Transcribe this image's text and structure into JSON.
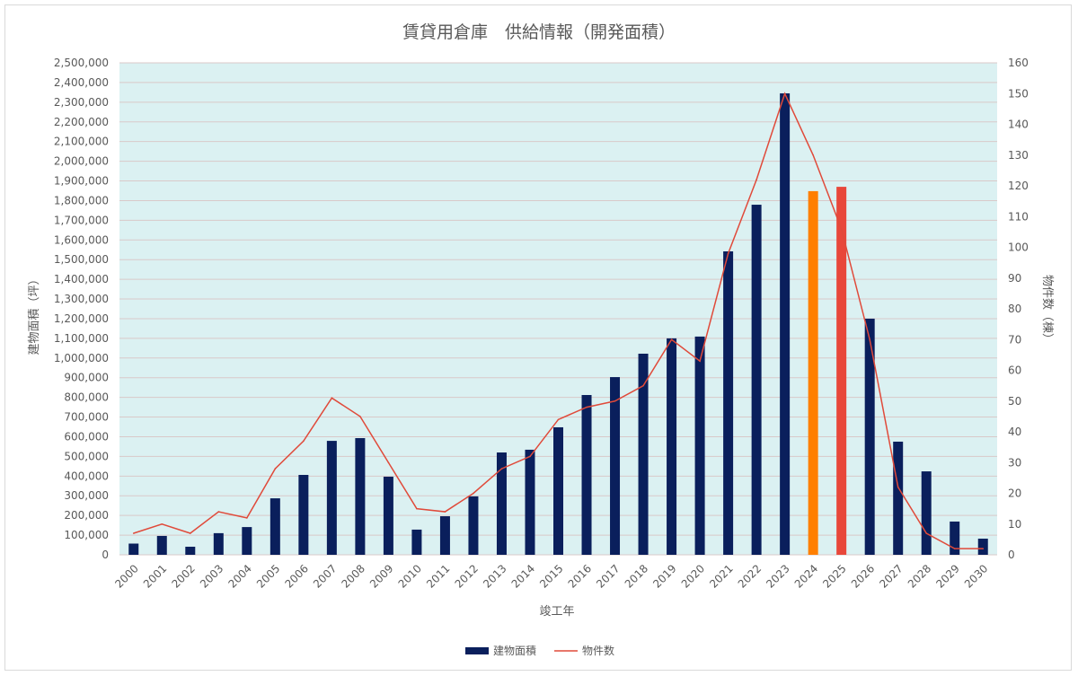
{
  "chart_data": {
    "type": "bar",
    "title": "賃貸用倉庫　供給情報（開発面積）",
    "xlabel": "竣工年",
    "ylabel": "建物面積（坪）",
    "y2label": "物件数（棟）",
    "ylim": [
      0,
      2500000
    ],
    "y2lim": [
      0,
      160
    ],
    "grid": true,
    "legend_position": "bottom",
    "categories": [
      "2000",
      "2001",
      "2002",
      "2003",
      "2004",
      "2005",
      "2006",
      "2007",
      "2008",
      "2009",
      "2010",
      "2011",
      "2012",
      "2013",
      "2014",
      "2015",
      "2016",
      "2017",
      "2018",
      "2019",
      "2020",
      "2021",
      "2022",
      "2023",
      "2024",
      "2025",
      "2026",
      "2027",
      "2028",
      "2029",
      "2030"
    ],
    "series": [
      {
        "name": "建物面積",
        "type": "bar",
        "axis": "left",
        "color": "#0a1f5c",
        "highlight_colors": {
          "2024": "#ff7f00",
          "2025": "#e8473a"
        },
        "values": [
          57000,
          96000,
          41000,
          110000,
          141000,
          287000,
          406000,
          579000,
          593000,
          397000,
          128000,
          196000,
          297000,
          520000,
          534000,
          648000,
          812000,
          903000,
          1022000,
          1100000,
          1109000,
          1542000,
          1779000,
          2345000,
          1848000,
          1870000,
          1200000,
          575000,
          424000,
          169000,
          82000
        ]
      },
      {
        "name": "物件数",
        "type": "line",
        "axis": "right",
        "color": "#e04a3a",
        "values": [
          7,
          10,
          7,
          14,
          12,
          28,
          37,
          51,
          45,
          30,
          15,
          14,
          20,
          28,
          32,
          44,
          48,
          50,
          55,
          70,
          63,
          98,
          122,
          150,
          130,
          106,
          70,
          22,
          7,
          2,
          2
        ]
      }
    ],
    "y_ticks": [
      "0",
      "100,000",
      "200,000",
      "300,000",
      "400,000",
      "500,000",
      "600,000",
      "700,000",
      "800,000",
      "900,000",
      "1,000,000",
      "1,100,000",
      "1,200,000",
      "1,300,000",
      "1,400,000",
      "1,500,000",
      "1,600,000",
      "1,700,000",
      "1,800,000",
      "1,900,000",
      "2,000,000",
      "2,100,000",
      "2,200,000",
      "2,300,000",
      "2,400,000",
      "2,500,000"
    ],
    "y2_ticks": [
      "0",
      "10",
      "20",
      "30",
      "40",
      "50",
      "60",
      "70",
      "80",
      "90",
      "100",
      "110",
      "120",
      "130",
      "140",
      "150",
      "160"
    ],
    "plot_bg": "#dbf1f2"
  }
}
